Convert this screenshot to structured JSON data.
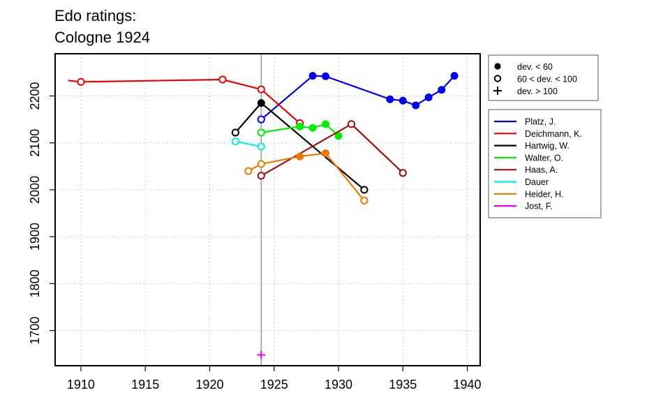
{
  "chart_data": {
    "type": "line",
    "title_lines": [
      "Edo ratings:",
      "Cologne 1924"
    ],
    "xlabel": "",
    "ylabel": "",
    "xlim": [
      1908,
      1941
    ],
    "ylim": [
      1625,
      2290
    ],
    "x_ticks": [
      1910,
      1915,
      1920,
      1925,
      1930,
      1935,
      1940
    ],
    "y_ticks": [
      1700,
      1800,
      1900,
      2000,
      2100,
      2200
    ],
    "grid": true,
    "reference_line_x": 1924,
    "deviation_legend": {
      "placement": "top-right-outside",
      "entries": [
        {
          "marker": "filled-circle",
          "label": "dev. < 60"
        },
        {
          "marker": "open-circle",
          "label": "60 < dev. < 100"
        },
        {
          "marker": "plus",
          "label": "dev. > 100"
        }
      ]
    },
    "series_legend_placement": "right-outside",
    "series": [
      {
        "name": "Platz, J.",
        "color": "#0000ee",
        "points": [
          {
            "x": 1924,
            "y": 2150,
            "m": "open"
          },
          {
            "x": 1928,
            "y": 2243,
            "m": "filled"
          },
          {
            "x": 1929,
            "y": 2242,
            "m": "filled"
          },
          {
            "x": 1934,
            "y": 2193,
            "m": "filled"
          },
          {
            "x": 1935,
            "y": 2190,
            "m": "filled"
          },
          {
            "x": 1936,
            "y": 2180,
            "m": "filled"
          },
          {
            "x": 1937,
            "y": 2197,
            "m": "filled"
          },
          {
            "x": 1938,
            "y": 2213,
            "m": "filled"
          },
          {
            "x": 1939,
            "y": 2243,
            "m": "filled"
          }
        ]
      },
      {
        "name": "Deichmann, K.",
        "color": "#ee0000",
        "points": [
          {
            "x": 1909,
            "y": 2233,
            "m": "none"
          },
          {
            "x": 1910,
            "y": 2230,
            "m": "open"
          },
          {
            "x": 1921,
            "y": 2235,
            "m": "open"
          },
          {
            "x": 1924,
            "y": 2214,
            "m": "open"
          },
          {
            "x": 1927,
            "y": 2142,
            "m": "open"
          }
        ]
      },
      {
        "name": "Hartwig, W.",
        "color": "#000000",
        "points": [
          {
            "x": 1922,
            "y": 2122,
            "m": "open"
          },
          {
            "x": 1924,
            "y": 2185,
            "m": "filled"
          },
          {
            "x": 1932,
            "y": 2000,
            "m": "open"
          }
        ]
      },
      {
        "name": "Walter, O.",
        "color": "#00ee00",
        "points": [
          {
            "x": 1924,
            "y": 2122,
            "m": "open"
          },
          {
            "x": 1927,
            "y": 2135,
            "m": "filled"
          },
          {
            "x": 1928,
            "y": 2132,
            "m": "filled"
          },
          {
            "x": 1929,
            "y": 2140,
            "m": "filled"
          },
          {
            "x": 1930,
            "y": 2115,
            "m": "filled"
          }
        ]
      },
      {
        "name": "Haas, A.",
        "color": "#a01010",
        "points": [
          {
            "x": 1924,
            "y": 2030,
            "m": "open"
          },
          {
            "x": 1931,
            "y": 2140,
            "m": "open"
          },
          {
            "x": 1935,
            "y": 2036,
            "m": "open"
          }
        ]
      },
      {
        "name": "Dauer",
        "color": "#00eeee",
        "points": [
          {
            "x": 1922,
            "y": 2103,
            "m": "open"
          },
          {
            "x": 1924,
            "y": 2092,
            "m": "open"
          }
        ]
      },
      {
        "name": "Heider, H.",
        "color": "#ee7700",
        "points": [
          {
            "x": 1923,
            "y": 2040,
            "m": "open"
          },
          {
            "x": 1924,
            "y": 2055,
            "m": "open"
          },
          {
            "x": 1927,
            "y": 2071,
            "m": "filled"
          },
          {
            "x": 1929,
            "y": 2078,
            "m": "filled"
          },
          {
            "x": 1932,
            "y": 1977,
            "m": "open"
          }
        ]
      },
      {
        "name": "Jost, F.",
        "color": "#ee00ee",
        "points": [
          {
            "x": 1924,
            "y": 1648,
            "m": "plus"
          }
        ]
      }
    ]
  }
}
